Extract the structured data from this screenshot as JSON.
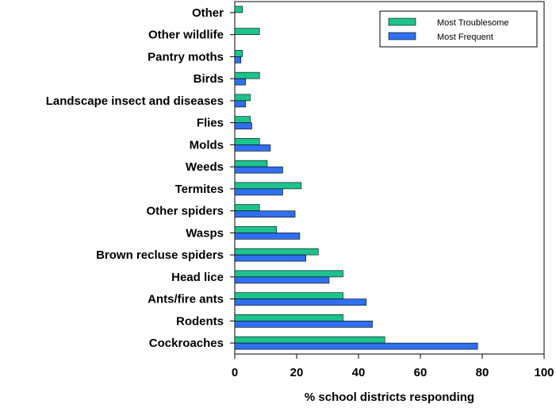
{
  "chart_data": {
    "type": "bar",
    "orientation": "horizontal",
    "categories": [
      "Other",
      "Other wildlife",
      "Pantry moths",
      "Birds",
      "Landscape insect and diseases",
      "Flies",
      "Molds",
      "Weeds",
      "Termites",
      "Other spiders",
      "Wasps",
      "Brown recluse spiders",
      "Head lice",
      "Ants/fire ants",
      "Rodents",
      "Cockroaches"
    ],
    "series": [
      {
        "name": "Most Troublesome",
        "color": "#1dc38c",
        "values": [
          2.5,
          8,
          2.5,
          8,
          5,
          5,
          8,
          10.5,
          21.5,
          8,
          13.5,
          27,
          35,
          35,
          35,
          48.5
        ]
      },
      {
        "name": "Most Frequent",
        "color": "#2f6ff0",
        "values": [
          0,
          0,
          2,
          3.5,
          3.5,
          5.5,
          11.5,
          15.5,
          15.5,
          19.5,
          21,
          23,
          30.5,
          42.5,
          44.5,
          78.5
        ]
      }
    ],
    "xlabel": "% school districts responding",
    "ylabel": "",
    "xlim": [
      0,
      100
    ],
    "xticks": [
      "0",
      "20",
      "40",
      "60",
      "80",
      "100"
    ],
    "legend": "top-right",
    "grid": false
  }
}
